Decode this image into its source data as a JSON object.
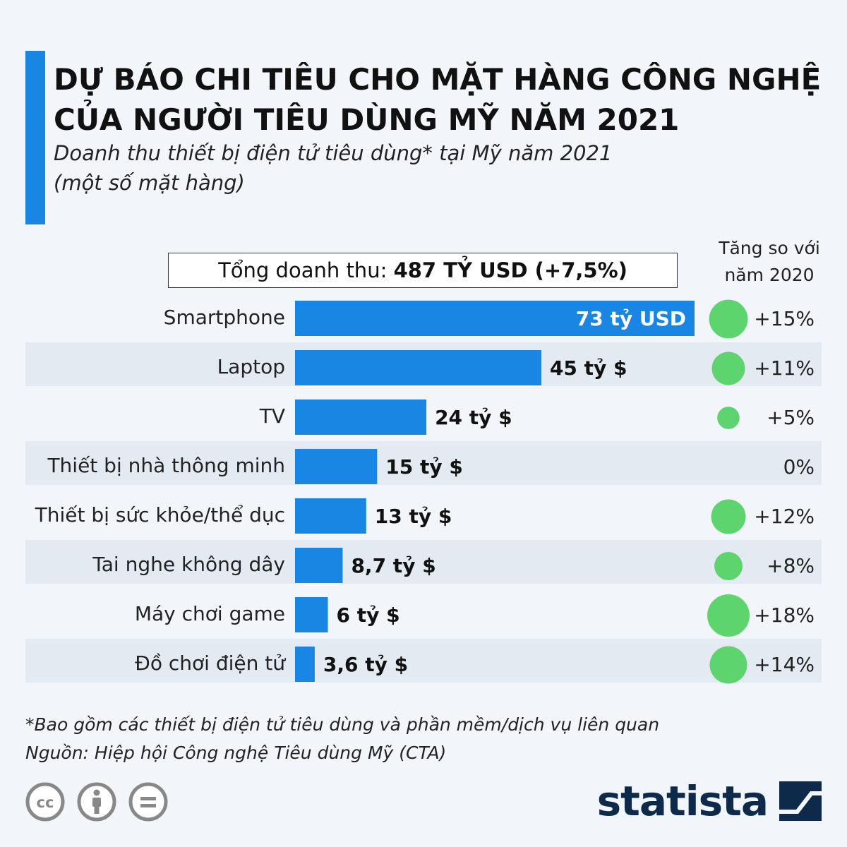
{
  "header": {
    "title": "DỰ BÁO CHI TIÊU CHO MẶT HÀNG CÔNG NGHỆ CỦA NGƯỜI TIÊU DÙNG MỸ NĂM 2021",
    "subtitle_line1": "Doanh thu thiết bị điện tử tiêu dùng* tại Mỹ năm 2021",
    "subtitle_line2": "(một số mặt hàng)"
  },
  "total": {
    "label": "Tổng doanh thu:",
    "value": "487 TỶ USD (+7,5%)"
  },
  "growth_header": {
    "line1": "Tăng so với",
    "line2": "năm 2020"
  },
  "chart_data": {
    "type": "bar",
    "orientation": "horizontal",
    "categories": [
      "Smartphone",
      "Laptop",
      "TV",
      "Thiết bị nhà thông minh",
      "Thiết bị sức khỏe/thể dục",
      "Tai nghe không dây",
      "Máy chơi game",
      "Đồ chơi điện tử"
    ],
    "values": [
      73,
      45,
      24,
      15,
      13,
      8.7,
      6,
      3.6
    ],
    "value_labels": [
      "73 tỷ USD",
      "45 tỷ $",
      "24 tỷ $",
      "15 tỷ $",
      "13 tỷ $",
      "8,7 tỷ $",
      "6 tỷ $",
      "3,6 tỷ $"
    ],
    "growth": [
      15,
      11,
      5,
      0,
      12,
      8,
      18,
      14
    ],
    "growth_labels": [
      "+15%",
      "+11%",
      "+5%",
      "0%",
      "+12%",
      "+8%",
      "+18%",
      "+14%"
    ],
    "xlim": [
      0,
      73
    ],
    "grid": false,
    "legend": "none",
    "bar_color": "#1a86e3",
    "bubble_color": "#5ed46e"
  },
  "footer": {
    "note": "*Bao gồm các thiết bị điện tử tiêu dùng và phần mềm/dịch vụ liên quan",
    "source": "Nguồn: Hiệp hội Công nghệ Tiêu dùng Mỹ (CTA)",
    "logo_text": "statista",
    "icons": [
      "cc-icon",
      "attribution-icon",
      "no-derivatives-icon"
    ]
  }
}
